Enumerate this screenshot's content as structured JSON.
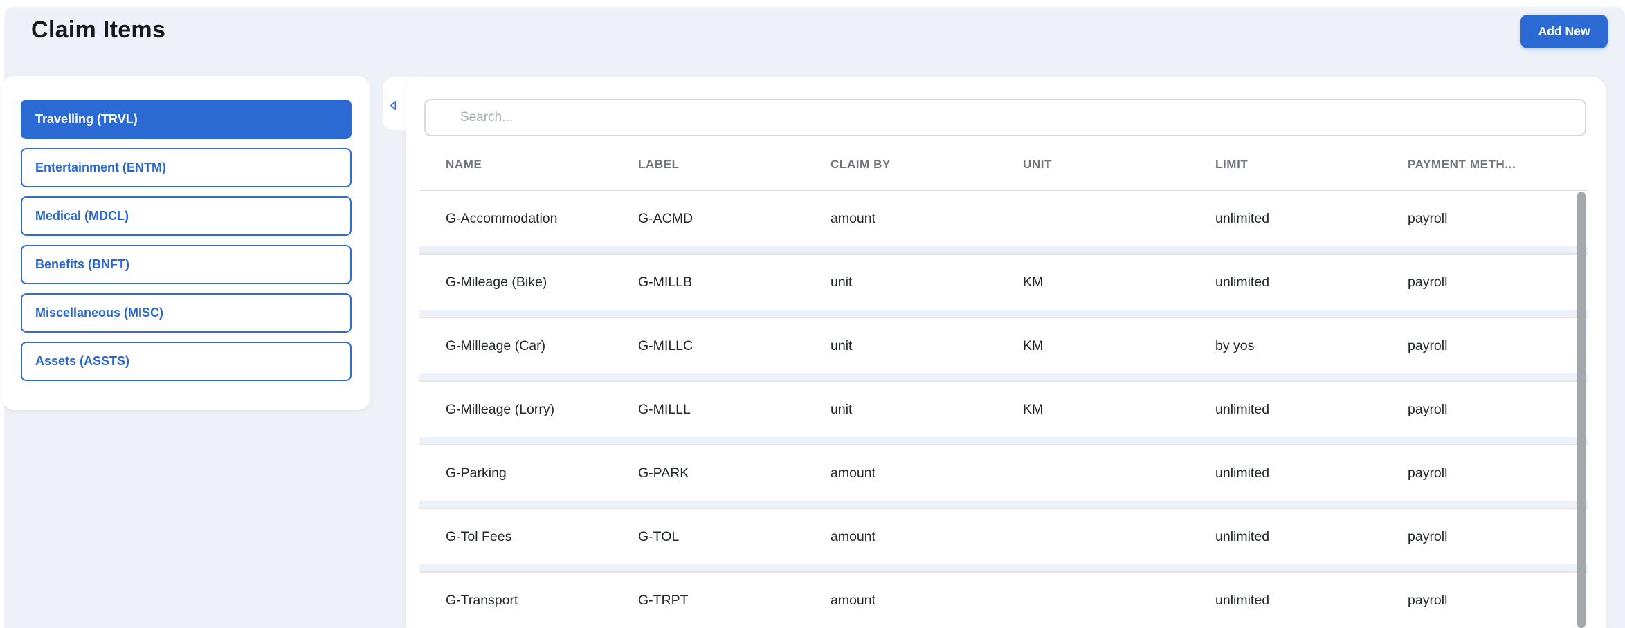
{
  "page": {
    "title": "Claim Items"
  },
  "toolbar": {
    "add_new_label": "Add New"
  },
  "sidebar": {
    "items": [
      {
        "key": "trvl",
        "label": "Travelling (TRVL)",
        "active": true
      },
      {
        "key": "entm",
        "label": "Entertainment (ENTM)",
        "active": false
      },
      {
        "key": "mdcl",
        "label": "Medical (MDCL)",
        "active": false
      },
      {
        "key": "bnft",
        "label": "Benefits (BNFT)",
        "active": false
      },
      {
        "key": "misc",
        "label": "Miscellaneous (MISC)",
        "active": false
      },
      {
        "key": "assts",
        "label": "Assets (ASSTS)",
        "active": false
      }
    ]
  },
  "content": {
    "search": {
      "placeholder": "Search..."
    },
    "collapse_icon": "chevron-left-icon",
    "table": {
      "columns": [
        {
          "key": "name",
          "label": "NAME"
        },
        {
          "key": "label",
          "label": "LABEL"
        },
        {
          "key": "claim_by",
          "label": "CLAIM BY"
        },
        {
          "key": "unit",
          "label": "UNIT"
        },
        {
          "key": "limit",
          "label": "LIMIT"
        },
        {
          "key": "payment_method",
          "label": "PAYMENT METH..."
        }
      ],
      "rows": [
        {
          "name": "G-Accommodation",
          "label": "G-ACMD",
          "claim_by": "amount",
          "unit": "",
          "limit": "unlimited",
          "payment_method": "payroll"
        },
        {
          "name": "G-Mileage (Bike)",
          "label": "G-MILLB",
          "claim_by": "unit",
          "unit": "KM",
          "limit": "unlimited",
          "payment_method": "payroll"
        },
        {
          "name": "G-Milleage (Car)",
          "label": "G-MILLC",
          "claim_by": "unit",
          "unit": "KM",
          "limit": "by yos",
          "payment_method": "payroll"
        },
        {
          "name": "G-Milleage (Lorry)",
          "label": "G-MILLL",
          "claim_by": "unit",
          "unit": "KM",
          "limit": "unlimited",
          "payment_method": "payroll"
        },
        {
          "name": "G-Parking",
          "label": "G-PARK",
          "claim_by": "amount",
          "unit": "",
          "limit": "unlimited",
          "payment_method": "payroll"
        },
        {
          "name": "G-Tol Fees",
          "label": "G-TOL",
          "claim_by": "amount",
          "unit": "",
          "limit": "unlimited",
          "payment_method": "payroll"
        },
        {
          "name": "G-Transport",
          "label": "G-TRPT",
          "claim_by": "amount",
          "unit": "",
          "limit": "unlimited",
          "payment_method": "payroll"
        }
      ]
    }
  },
  "colors": {
    "accent": "#2a6ad2",
    "page_bg": "#eef1f7",
    "header_text": "#70757e",
    "row_separator": "#edf1f8",
    "scrollbar_thumb": "#a4a7ab"
  }
}
